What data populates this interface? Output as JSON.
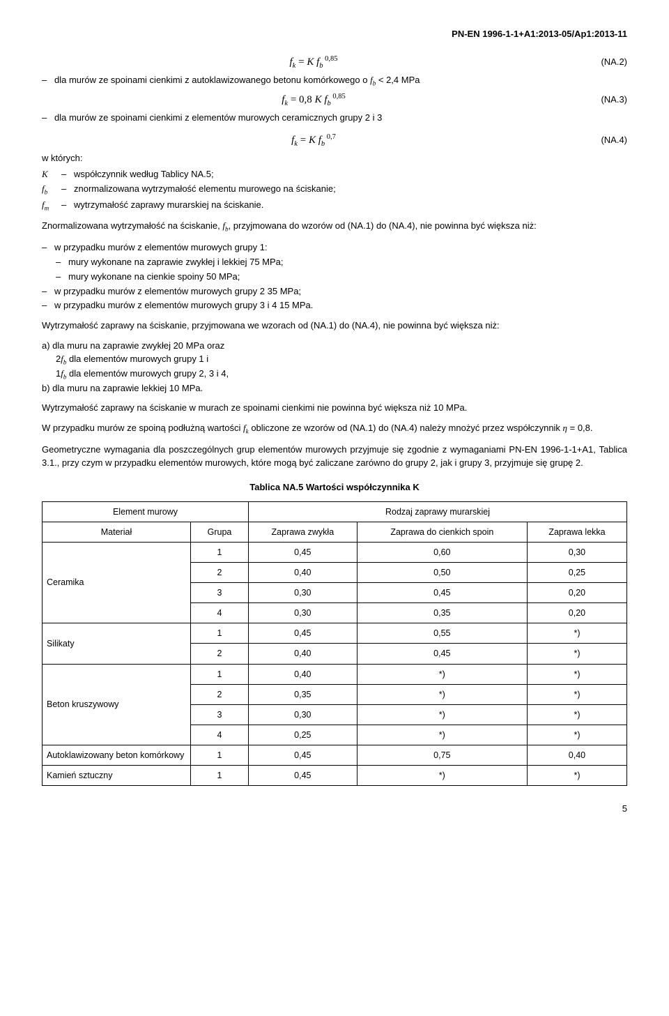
{
  "doc_header": "PN-EN 1996-1-1+A1:2013-05/Ap1:2013-11",
  "eq2": {
    "lhs": "f",
    "lhs_sub": "k",
    "eq": " = ",
    "k": "K f",
    "b_sub": "b",
    "exp": "0,85",
    "num": "(NA.2)"
  },
  "line_eq2": "dla murów ze spoinami cienkimi z autoklawizowanego betonu komórkowego o ",
  "line_eq2_tail": " < 2,4 MPa",
  "eq3": {
    "k": "0,8 K f",
    "exp": "0,85",
    "num": "(NA.3)"
  },
  "line_eq3": "dla murów ze spoinami cienkimi z elementów murowych ceramicznych grupy 2 i 3",
  "eq4": {
    "exp": "0,7",
    "num": "(NA.4)"
  },
  "defs_title": "w których:",
  "defs": {
    "K": {
      "sym": "K",
      "txt": "współczynnik według Tablicy NA.5;"
    },
    "fb": {
      "sym_html": "f<span class='sub'>b</span>",
      "txt": "znormalizowana wytrzymałość elementu murowego na ściskanie;"
    },
    "fm": {
      "sym_html": "f<span class='sub'>m</span>",
      "txt": "wytrzymałość zaprawy murarskiej na ściskanie."
    }
  },
  "para1_a": "Znormalizowana wytrzymałość na ściskanie, ",
  "para1_b": ", przyjmowana do wzorów od (NA.1) do (NA.4), nie powinna być większa niż:",
  "b1": "w przypadku murów z elementów murowych grupy 1:",
  "b1a": "mury wykonane na zaprawie zwykłej i lekkiej 75 MPa;",
  "b1b": "mury wykonane na cienkie spoiny 50 MPa;",
  "b2": "w przypadku murów z elementów murowych grupy 2 35 MPa;",
  "b3": "w przypadku murów z elementów murowych grupy 3 i 4 15 MPa.",
  "para2": "Wytrzymałość zaprawy na ściskanie, przyjmowana we wzorach od (NA.1) do (NA.4), nie powinna być większa niż:",
  "p2a": "a) dla muru na zaprawie zwykłej 20 MPa oraz",
  "p2b_pre": "2",
  "p2b_post": " dla elementów murowych grupy 1 i",
  "p2c_pre": "1",
  "p2c_post": " dla elementów murowych grupy 2, 3 i 4,",
  "p2d": "b) dla muru na zaprawie lekkiej 10 MPa.",
  "para3": "Wytrzymałość zaprawy na ściskanie w murach ze spoinami cienkimi nie powinna być większa niż 10 MPa.",
  "para4_a": "W przypadku murów ze spoiną podłużną wartości ",
  "para4_b": " obliczone ze wzorów od (NA.1) do (NA.4) należy mnożyć przez współczynnik ",
  "para4_eta": "η",
  "para4_c": " = 0,8.",
  "para5": "Geometryczne wymagania dla poszczególnych grup elementów murowych przyjmuje się zgodnie z wymaganiami PN-EN 1996-1-1+A1, Tablica 3.1., przy czym w przypadku elementów murowych, które mogą być zaliczane zarówno do grupy 2, jak i grupy 3, przyjmuje się grupę 2.",
  "table_title": "Tablica NA.5 Wartości współczynnika K",
  "table": {
    "h_element": "Element murowy",
    "h_rodzaj": "Rodzaj zaprawy murarskiej",
    "h_material": "Materiał",
    "h_grupa": "Grupa",
    "h_zwykla": "Zaprawa zwykła",
    "h_cienkich": "Zaprawa do cienkich spoin",
    "h_lekka": "Zaprawa lekka",
    "rows": [
      {
        "mat": "Ceramika",
        "span": 4,
        "g": "1",
        "a": "0,45",
        "b": "0,60",
        "c": "0,30"
      },
      {
        "g": "2",
        "a": "0,40",
        "b": "0,50",
        "c": "0,25"
      },
      {
        "g": "3",
        "a": "0,30",
        "b": "0,45",
        "c": "0,20"
      },
      {
        "g": "4",
        "a": "0,30",
        "b": "0,35",
        "c": "0,20"
      },
      {
        "mat": "Silikaty",
        "span": 2,
        "g": "1",
        "a": "0,45",
        "b": "0,55",
        "c": "*)"
      },
      {
        "g": "2",
        "a": "0,40",
        "b": "0,45",
        "c": "*)"
      },
      {
        "mat": "Beton kruszywowy",
        "span": 4,
        "g": "1",
        "a": "0,40",
        "b": "*)",
        "c": "*)"
      },
      {
        "g": "2",
        "a": "0,35",
        "b": "*)",
        "c": "*)"
      },
      {
        "g": "3",
        "a": "0,30",
        "b": "*)",
        "c": "*)"
      },
      {
        "g": "4",
        "a": "0,25",
        "b": "*)",
        "c": "*)"
      },
      {
        "mat": "Autoklawizowany beton komórkowy",
        "span": 1,
        "g": "1",
        "a": "0,45",
        "b": "0,75",
        "c": "0,40"
      },
      {
        "mat": "Kamień sztuczny",
        "span": 1,
        "g": "1",
        "a": "0,45",
        "b": "*)",
        "c": "*)"
      }
    ]
  },
  "page_num": "5"
}
